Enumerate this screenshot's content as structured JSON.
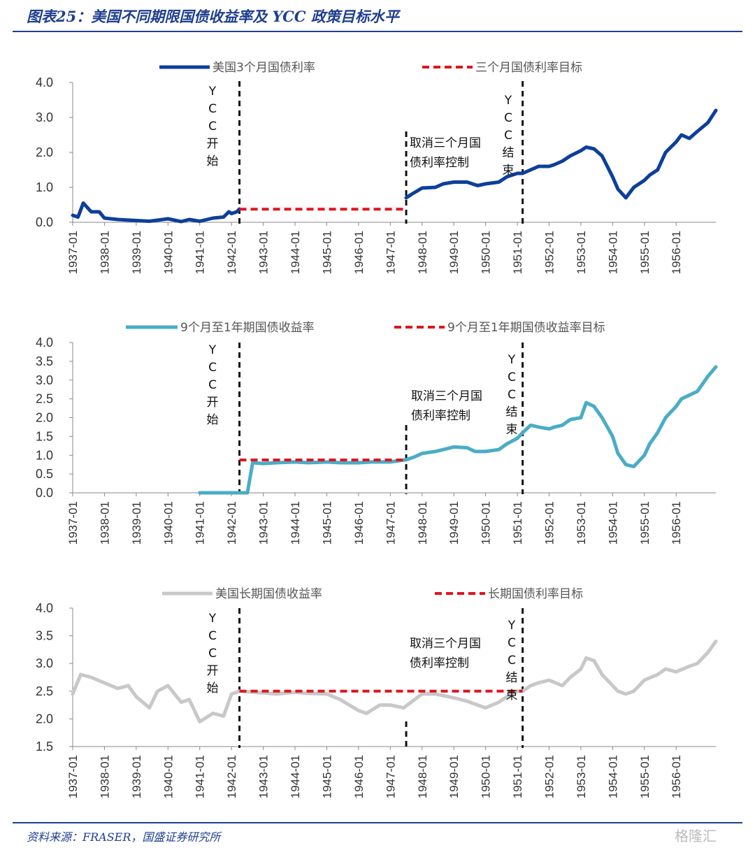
{
  "header": {
    "title": "图表25：美国不同期限国债收益率及 YCC 政策目标水平"
  },
  "footer": {
    "source": "资料来源：FRASER，国盛证券研究所",
    "watermark": "格隆汇"
  },
  "colors": {
    "dark_blue": "#0d3f9a",
    "light_blue": "#4bacc6",
    "gray": "#c8c8c8",
    "target_red": "#e0141e",
    "marker": "#111111",
    "brand": "#1f3f8f"
  },
  "x_tick_labels": [
    "1937-01",
    "1938-01",
    "1939-01",
    "1940-01",
    "1941-01",
    "1942-01",
    "1943-01",
    "1944-01",
    "1945-01",
    "1946-01",
    "1947-01",
    "1948-01",
    "1949-01",
    "1950-01",
    "1951-01",
    "1952-01",
    "1953-01",
    "1954-01",
    "1955-01",
    "1956-01"
  ],
  "annotations": {
    "ycc_start": "YCC开始",
    "ycc_end": "YCC结束",
    "cancel_line1": "取消三个月国",
    "cancel_line2": "债利率控制"
  },
  "chart_data": [
    {
      "type": "line",
      "x_range": [
        "1937-01",
        "1957-04"
      ],
      "ylim": [
        0,
        4
      ],
      "y_ticks": [
        "0.0",
        "1.0",
        "2.0",
        "3.0",
        "4.0"
      ],
      "legend_position": "top",
      "vlines": [
        "1942-04",
        "1947-07",
        "1951-03"
      ],
      "series": [
        {
          "name": "美国3个月国债利率",
          "color_key": "dark_blue",
          "x": [
            "1937-01",
            "1937-03",
            "1937-05",
            "1937-08",
            "1937-11",
            "1938-01",
            "1938-06",
            "1939-01",
            "1939-06",
            "1940-01",
            "1940-06",
            "1940-09",
            "1941-01",
            "1941-06",
            "1941-10",
            "1941-12",
            "1942-01",
            "1942-03",
            "1942-04"
          ],
          "y": [
            0.2,
            0.15,
            0.55,
            0.3,
            0.3,
            0.12,
            0.08,
            0.05,
            0.03,
            0.1,
            0.02,
            0.08,
            0.03,
            0.12,
            0.15,
            0.3,
            0.25,
            0.3,
            0.38
          ]
        },
        {
          "name": "美国3个月国债利率",
          "x": [
            "1947-07",
            "1947-09",
            "1948-01",
            "1948-06",
            "1948-09",
            "1949-01",
            "1949-06",
            "1949-10",
            "1950-01",
            "1950-06",
            "1950-09",
            "1951-01",
            "1951-03",
            "1951-06",
            "1951-09",
            "1952-01",
            "1952-03",
            "1952-06",
            "1952-09",
            "1953-01",
            "1953-03",
            "1953-06",
            "1953-09",
            "1954-01",
            "1954-03",
            "1954-06",
            "1954-09",
            "1955-01",
            "1955-03",
            "1955-06",
            "1955-09",
            "1956-01",
            "1956-03",
            "1956-06",
            "1956-09",
            "1957-01",
            "1957-04"
          ],
          "y": [
            0.7,
            0.8,
            0.98,
            1.0,
            1.1,
            1.15,
            1.15,
            1.05,
            1.1,
            1.15,
            1.3,
            1.4,
            1.4,
            1.5,
            1.6,
            1.6,
            1.65,
            1.75,
            1.9,
            2.05,
            2.15,
            2.1,
            1.9,
            1.3,
            0.95,
            0.7,
            1.0,
            1.2,
            1.35,
            1.5,
            2.0,
            2.3,
            2.5,
            2.4,
            2.6,
            2.85,
            3.2
          ]
        }
      ],
      "targets": [
        {
          "name": "三个月国债利率目标",
          "x": [
            "1942-04",
            "1947-07"
          ],
          "y": [
            0.375,
            0.375
          ]
        }
      ]
    },
    {
      "type": "line",
      "x_range": [
        "1937-01",
        "1957-04"
      ],
      "ylim": [
        0,
        4
      ],
      "y_ticks": [
        "0.0",
        "0.5",
        "1.0",
        "1.5",
        "2.0",
        "2.5",
        "3.0",
        "3.5",
        "4.0"
      ],
      "legend_position": "top",
      "vlines": [
        "1942-04",
        "1947-07",
        "1951-03"
      ],
      "series": [
        {
          "name": "9个月至1年期国债收益率",
          "x": [
            "1941-01",
            "1942-07",
            "1942-09",
            "1943-01",
            "1943-06",
            "1944-01",
            "1944-06",
            "1945-01",
            "1945-06",
            "1946-01",
            "1946-06",
            "1947-01",
            "1947-07",
            "1947-10",
            "1948-01",
            "1948-06",
            "1948-09",
            "1949-01",
            "1949-06",
            "1949-09",
            "1950-01",
            "1950-06",
            "1950-09",
            "1951-01",
            "1951-03",
            "1951-06",
            "1951-09",
            "1952-01",
            "1952-03",
            "1952-06",
            "1952-09",
            "1953-01",
            "1953-03",
            "1953-06",
            "1953-09",
            "1954-01",
            "1954-03",
            "1954-06",
            "1954-09",
            "1955-01",
            "1955-03",
            "1955-06",
            "1955-09",
            "1956-01",
            "1956-03",
            "1956-06",
            "1956-09",
            "1957-01",
            "1957-04"
          ],
          "y": [
            0,
            0,
            0.8,
            0.78,
            0.8,
            0.82,
            0.8,
            0.82,
            0.8,
            0.8,
            0.82,
            0.82,
            0.88,
            0.95,
            1.05,
            1.1,
            1.15,
            1.22,
            1.2,
            1.1,
            1.1,
            1.15,
            1.3,
            1.45,
            1.6,
            1.8,
            1.75,
            1.7,
            1.75,
            1.8,
            1.95,
            2.0,
            2.4,
            2.3,
            2.0,
            1.5,
            1.05,
            0.75,
            0.7,
            1.0,
            1.3,
            1.6,
            2.0,
            2.3,
            2.5,
            2.6,
            2.7,
            3.1,
            3.35
          ]
        }
      ],
      "targets": [
        {
          "name": "9个月至1年期国债收益率目标",
          "x": [
            "1942-04",
            "1947-07"
          ],
          "y": [
            0.875,
            0.875
          ]
        }
      ]
    },
    {
      "type": "line",
      "x_range": [
        "1937-01",
        "1957-04"
      ],
      "ylim": [
        1.5,
        4
      ],
      "y_ticks": [
        "1.5",
        "2.0",
        "2.5",
        "3.0",
        "3.5",
        "4.0"
      ],
      "legend_position": "top",
      "vlines": [
        "1942-04",
        "1947-07",
        "1951-03"
      ],
      "series": [
        {
          "name": "美国长期国债收益率",
          "x": [
            "1937-01",
            "1937-04",
            "1937-08",
            "1938-01",
            "1938-06",
            "1938-10",
            "1939-01",
            "1939-06",
            "1939-09",
            "1940-01",
            "1940-06",
            "1940-09",
            "1941-01",
            "1941-06",
            "1941-10",
            "1942-01",
            "1942-04",
            "1943-01",
            "1943-06",
            "1944-01",
            "1944-06",
            "1945-01",
            "1945-06",
            "1946-01",
            "1946-04",
            "1946-09",
            "1947-01",
            "1947-06",
            "1948-01",
            "1948-06",
            "1949-01",
            "1949-06",
            "1950-01",
            "1950-06",
            "1950-09",
            "1951-01",
            "1951-03",
            "1951-06",
            "1951-09",
            "1952-01",
            "1952-06",
            "1952-09",
            "1953-01",
            "1953-03",
            "1953-06",
            "1953-09",
            "1954-01",
            "1954-03",
            "1954-06",
            "1954-09",
            "1955-01",
            "1955-06",
            "1955-09",
            "1956-01",
            "1956-06",
            "1956-09",
            "1957-01",
            "1957-04"
          ],
          "y": [
            2.45,
            2.8,
            2.75,
            2.65,
            2.55,
            2.6,
            2.4,
            2.2,
            2.5,
            2.6,
            2.3,
            2.35,
            1.95,
            2.1,
            2.05,
            2.45,
            2.5,
            2.47,
            2.45,
            2.48,
            2.46,
            2.45,
            2.35,
            2.15,
            2.1,
            2.25,
            2.25,
            2.2,
            2.45,
            2.45,
            2.38,
            2.32,
            2.2,
            2.3,
            2.4,
            2.5,
            2.5,
            2.6,
            2.65,
            2.7,
            2.6,
            2.75,
            2.9,
            3.1,
            3.05,
            2.8,
            2.6,
            2.5,
            2.45,
            2.5,
            2.7,
            2.8,
            2.9,
            2.85,
            2.95,
            3.0,
            3.2,
            3.4
          ]
        }
      ],
      "targets": [
        {
          "name": "长期国债利率目标",
          "x": [
            "1942-04",
            "1951-03"
          ],
          "y": [
            2.5,
            2.5
          ]
        }
      ]
    }
  ]
}
